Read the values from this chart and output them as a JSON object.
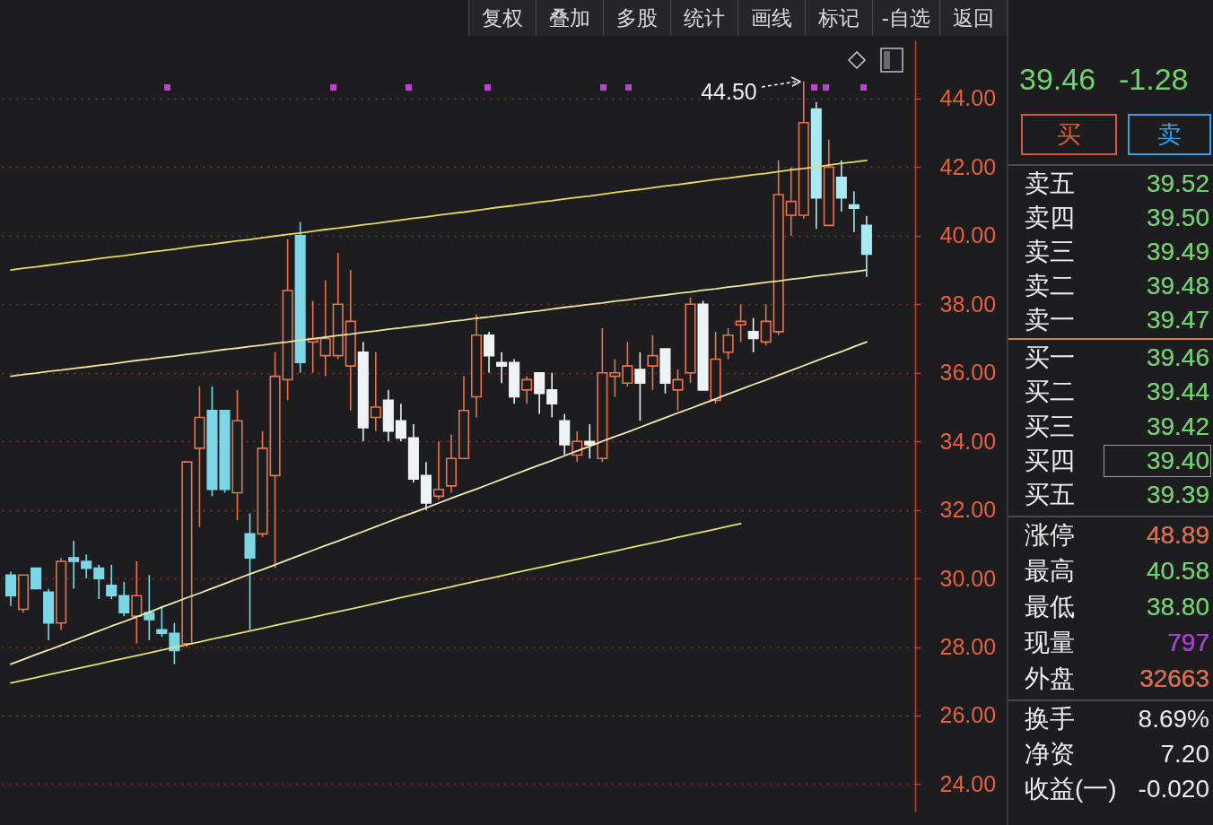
{
  "chart_data": [
    {
      "type": "candlestick",
      "categories": [
        null,
        null,
        null,
        null,
        null,
        null,
        null,
        null,
        null,
        null,
        null,
        null,
        null,
        null,
        null,
        null,
        null,
        null,
        null,
        null,
        null,
        null,
        null,
        null,
        null,
        null,
        null,
        null,
        null,
        null,
        null,
        null,
        null,
        null,
        null,
        null,
        null,
        null,
        null,
        null,
        null,
        null,
        null,
        null,
        null,
        null,
        null,
        null,
        null,
        null,
        null,
        null,
        null,
        null,
        null,
        null,
        null,
        null,
        null,
        null,
        null,
        null,
        null,
        null,
        null,
        null,
        null,
        null,
        null
      ],
      "ohlc": [
        [
          30.1,
          30.2,
          29.2,
          29.5
        ],
        [
          29.1,
          30.1,
          29.0,
          30.1
        ],
        [
          30.3,
          30.3,
          29.7,
          29.7
        ],
        [
          29.6,
          29.7,
          28.2,
          28.7
        ],
        [
          28.7,
          30.6,
          28.5,
          30.5
        ],
        [
          30.6,
          31.1,
          29.7,
          30.5
        ],
        [
          30.5,
          30.7,
          30.0,
          30.3
        ],
        [
          30.3,
          30.4,
          29.4,
          30.0
        ],
        [
          29.8,
          30.4,
          29.4,
          29.5
        ],
        [
          29.5,
          29.9,
          28.9,
          29.0
        ],
        [
          28.9,
          30.5,
          28.1,
          29.5
        ],
        [
          29.0,
          30.1,
          28.2,
          28.8
        ],
        [
          28.5,
          29.2,
          28.3,
          28.4
        ],
        [
          28.4,
          28.7,
          27.5,
          27.9
        ],
        [
          28.1,
          33.4,
          28.0,
          33.4
        ],
        [
          33.8,
          35.6,
          31.5,
          34.7
        ],
        [
          34.9,
          35.6,
          32.4,
          32.6
        ],
        [
          34.9,
          34.9,
          32.5,
          32.6
        ],
        [
          32.5,
          35.5,
          31.7,
          34.6
        ],
        [
          31.3,
          31.9,
          28.5,
          30.6
        ],
        [
          31.3,
          34.3,
          31.2,
          33.8
        ],
        [
          33.0,
          36.6,
          30.3,
          35.9
        ],
        [
          35.8,
          39.9,
          35.2,
          38.4
        ],
        [
          40.0,
          40.4,
          36.0,
          36.3
        ],
        [
          36.9,
          38.1,
          36.0,
          37.0
        ],
        [
          36.5,
          38.7,
          35.9,
          37.0
        ],
        [
          36.5,
          39.5,
          36.4,
          38.0
        ],
        [
          36.2,
          39.0,
          34.9,
          37.5
        ],
        [
          36.6,
          36.9,
          34.0,
          34.4
        ],
        [
          34.7,
          36.6,
          34.3,
          35.0
        ],
        [
          35.2,
          35.5,
          34.0,
          34.3
        ],
        [
          34.6,
          35.1,
          34.0,
          34.1
        ],
        [
          34.1,
          34.5,
          32.8,
          32.9
        ],
        [
          33.0,
          33.4,
          32.0,
          32.2
        ],
        [
          32.4,
          34.0,
          32.3,
          32.6
        ],
        [
          32.7,
          34.2,
          32.5,
          33.5
        ],
        [
          33.5,
          35.9,
          33.5,
          34.9
        ],
        [
          35.3,
          37.7,
          34.7,
          37.1
        ],
        [
          37.1,
          37.2,
          36.0,
          36.5
        ],
        [
          36.3,
          36.6,
          35.7,
          36.2
        ],
        [
          36.3,
          36.4,
          35.1,
          35.3
        ],
        [
          35.5,
          35.9,
          35.1,
          35.8
        ],
        [
          36.0,
          36.0,
          34.8,
          35.4
        ],
        [
          35.5,
          36.0,
          34.7,
          35.1
        ],
        [
          34.6,
          34.8,
          33.6,
          33.9
        ],
        [
          33.6,
          34.3,
          33.4,
          34.0
        ],
        [
          34.0,
          34.5,
          33.5,
          33.9
        ],
        [
          33.5,
          37.3,
          33.4,
          36.0
        ],
        [
          35.9,
          36.4,
          35.3,
          36.0
        ],
        [
          35.7,
          36.9,
          35.6,
          36.2
        ],
        [
          36.1,
          36.6,
          34.6,
          35.7
        ],
        [
          36.2,
          37.1,
          35.5,
          36.5
        ],
        [
          36.7,
          36.7,
          35.4,
          35.7
        ],
        [
          35.5,
          36.1,
          34.9,
          35.8
        ],
        [
          36.0,
          38.2,
          35.7,
          38.0
        ],
        [
          38.0,
          38.1,
          35.5,
          35.5
        ],
        [
          35.2,
          37.2,
          35.1,
          36.4
        ],
        [
          36.6,
          37.3,
          36.4,
          37.1
        ],
        [
          37.4,
          38.0,
          36.9,
          37.5
        ],
        [
          37.2,
          37.6,
          36.6,
          37.0
        ],
        [
          36.9,
          38.0,
          36.8,
          37.5
        ],
        [
          37.2,
          42.2,
          37.1,
          41.2
        ],
        [
          40.6,
          42.0,
          40.0,
          41.0
        ],
        [
          40.6,
          44.5,
          40.5,
          43.3
        ],
        [
          43.7,
          43.9,
          40.2,
          41.1
        ],
        [
          40.3,
          42.8,
          40.3,
          42.0
        ],
        [
          41.7,
          42.2,
          40.7,
          41.1
        ],
        [
          40.9,
          41.3,
          40.1,
          40.8
        ],
        [
          40.3,
          40.58,
          38.8,
          39.46
        ]
      ],
      "colors": [
        "#7dd6e6",
        "#e8744e",
        "#7dd6e6",
        "#7dd6e6",
        "#e8744e",
        "#7dd6e6",
        "#7dd6e6",
        "#7dd6e6",
        "#7dd6e6",
        "#7dd6e6",
        "#e8744e",
        "#7dd6e6",
        "#7dd6e6",
        "#7dd6e6",
        "#e8744e",
        "#e8744e",
        "#7dd6e6",
        "#7dd6e6",
        "#e8744e",
        "#7dd6e6",
        "#e8744e",
        "#e8744e",
        "#e8744e",
        "#7dd6e6",
        "#e8744e",
        "#e8744e",
        "#e8744e",
        "#e8744e",
        "#eef2f2",
        "#e8744e",
        "#eef2f2",
        "#eef2f2",
        "#eef2f2",
        "#eef2f2",
        "#e8744e",
        "#e8744e",
        "#e8744e",
        "#e8744e",
        "#eef2f2",
        "#eef2f2",
        "#eef2f2",
        "#e8744e",
        "#eef2f2",
        "#eef2f2",
        "#eef2f2",
        "#e8744e",
        "#eef2f2",
        "#e8744e",
        "#e8744e",
        "#e8744e",
        "#eef2f2",
        "#e8744e",
        "#eef2f2",
        "#e8744e",
        "#e8744e",
        "#eef2f2",
        "#e8744e",
        "#e8744e",
        "#e8744e",
        "#eef2f2",
        "#e8744e",
        "#e8744e",
        "#e8744e",
        "#e8744e",
        "#a9e9f2",
        "#e8744e",
        "#a9e9f2",
        "#a9e9f2",
        "#a9e9f2"
      ],
      "ylim": [
        23.2,
        45.7
      ],
      "yticks": [
        {
          "value": 24,
          "label": "24.00"
        },
        {
          "value": 26,
          "label": "26.00"
        },
        {
          "value": 28,
          "label": "28.00"
        },
        {
          "value": 30,
          "label": "30.00"
        },
        {
          "value": 32,
          "label": "32.00"
        },
        {
          "value": 34,
          "label": "34.00"
        },
        {
          "value": 36,
          "label": "36.00"
        },
        {
          "value": 38,
          "label": "38.00"
        },
        {
          "value": 40,
          "label": "40.00"
        },
        {
          "value": 42,
          "label": "42.00"
        },
        {
          "value": 44,
          "label": "44.00"
        }
      ],
      "grid": "y",
      "series": [
        {
          "type": "line",
          "color": "#e2dd5c",
          "values": [
            39.0,
            39.05,
            39.09,
            39.14,
            39.19,
            39.24,
            39.28,
            39.33,
            39.38,
            39.42,
            39.47,
            39.52,
            39.56,
            39.61,
            39.66,
            39.71,
            39.75,
            39.8,
            39.85,
            39.89,
            39.94,
            39.99,
            40.04,
            40.08,
            40.13,
            40.18,
            40.22,
            40.27,
            40.32,
            40.36,
            40.41,
            40.46,
            40.51,
            40.55,
            40.6,
            40.65,
            40.69,
            40.74,
            40.79,
            40.84,
            40.88,
            40.93,
            40.98,
            41.02,
            41.07,
            41.12,
            41.16,
            41.21,
            41.26,
            41.31,
            41.35,
            41.4,
            41.45,
            41.49,
            41.54,
            41.59,
            41.64,
            41.68,
            41.73,
            41.78,
            41.82,
            41.87,
            41.92,
            41.96,
            42.01,
            42.06,
            42.11,
            42.15,
            42.2
          ]
        },
        {
          "type": "line",
          "color": "#e9e6a0",
          "values": [
            35.9,
            35.95,
            35.99,
            36.04,
            36.08,
            36.13,
            36.17,
            36.22,
            36.26,
            36.31,
            36.36,
            36.4,
            36.45,
            36.49,
            36.54,
            36.58,
            36.63,
            36.68,
            36.72,
            36.77,
            36.81,
            36.86,
            36.9,
            36.95,
            36.99,
            37.04,
            37.09,
            37.13,
            37.18,
            37.22,
            37.27,
            37.31,
            37.36,
            37.4,
            37.45,
            37.5,
            37.54,
            37.59,
            37.63,
            37.68,
            37.72,
            37.77,
            37.81,
            37.86,
            37.91,
            37.95,
            38.0,
            38.04,
            38.09,
            38.13,
            38.18,
            38.23,
            38.27,
            38.32,
            38.36,
            38.41,
            38.45,
            38.5,
            38.54,
            38.59,
            38.64,
            38.68,
            38.73,
            38.77,
            38.82,
            38.86,
            38.91,
            38.95,
            39.0
          ]
        },
        {
          "type": "line",
          "color": "#efecb4",
          "values": [
            27.5,
            27.64,
            27.78,
            27.91,
            28.05,
            28.19,
            28.33,
            28.47,
            28.61,
            28.74,
            28.88,
            29.02,
            29.16,
            29.3,
            29.44,
            29.57,
            29.71,
            29.85,
            29.99,
            30.13,
            30.26,
            30.4,
            30.54,
            30.68,
            30.82,
            30.96,
            31.09,
            31.23,
            31.37,
            31.51,
            31.65,
            31.79,
            31.92,
            32.06,
            32.2,
            32.34,
            32.48,
            32.61,
            32.75,
            32.89,
            33.03,
            33.17,
            33.31,
            33.44,
            33.58,
            33.72,
            33.86,
            34.0,
            34.14,
            34.27,
            34.41,
            34.55,
            34.69,
            34.83,
            34.96,
            35.1,
            35.24,
            35.38,
            35.52,
            35.66,
            35.79,
            35.93,
            36.07,
            36.21,
            36.35,
            36.49,
            36.62,
            36.76,
            36.9
          ]
        },
        {
          "type": "line",
          "color": "#e3e07a",
          "values": [
            26.95,
            27.03,
            27.11,
            27.19,
            27.27,
            27.35,
            27.43,
            27.51,
            27.59,
            27.67,
            27.75,
            27.83,
            27.91,
            27.99,
            28.07,
            28.15,
            28.23,
            28.31,
            28.39,
            28.47,
            28.55,
            28.63,
            28.71,
            28.79,
            28.87,
            28.95,
            29.03,
            29.11,
            29.19,
            29.27,
            29.36,
            29.44,
            29.52,
            29.6,
            29.68,
            29.76,
            29.84,
            29.92,
            30.0,
            30.08,
            30.16,
            30.24,
            30.32,
            30.4,
            30.48,
            30.56,
            30.64,
            30.72,
            30.8,
            30.88,
            30.96,
            31.04,
            31.12,
            31.2,
            31.28,
            31.36,
            31.44,
            31.52,
            31.6,
            null,
            null,
            null,
            null,
            null,
            null,
            null,
            null,
            null,
            null
          ]
        }
      ],
      "annotations": [
        "44.50",
        "复权",
        "叠加",
        "多股",
        "统计",
        "画线",
        "标记",
        "-自选",
        "返回"
      ]
    },
    {
      "type": "other",
      "annotations": [
        "39.46",
        "-1.28",
        "买",
        "卖",
        "卖五 39.52",
        "卖四 39.50",
        "卖三 39.49",
        "卖二 39.48",
        "卖一 39.47",
        "买一 39.46",
        "买二 39.44",
        "买三 39.42",
        "买四 39.40",
        "买五 39.39",
        "涨停 48.89",
        "最高 40.58",
        "最低 38.80",
        "现量 797",
        "外盘 32663",
        "换手 8.69%",
        "净资 7.20",
        "收益(一) -0.020"
      ]
    }
  ]
}
